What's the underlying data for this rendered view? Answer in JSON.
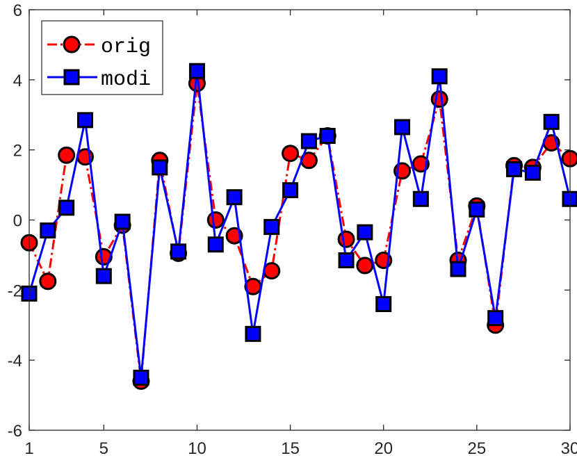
{
  "chart_data": {
    "type": "line",
    "title": "",
    "xlabel": "",
    "ylabel": "",
    "xlim": [
      1,
      30
    ],
    "ylim": [
      -6,
      6
    ],
    "xticks": [
      "1",
      "5",
      "10",
      "15",
      "20",
      "25",
      "30"
    ],
    "yticks": [
      "-6",
      "-4",
      "-2",
      "0",
      "2",
      "4",
      "6"
    ],
    "grid": false,
    "legend_position": "top-left",
    "x": [
      1,
      2,
      3,
      4,
      5,
      6,
      7,
      8,
      9,
      10,
      11,
      12,
      13,
      14,
      15,
      16,
      17,
      18,
      19,
      20,
      21,
      22,
      23,
      24,
      25,
      26,
      27,
      28,
      29,
      30
    ],
    "series": [
      {
        "name": "orig",
        "color": "#ff0000",
        "line_style": "dash-dot",
        "marker": "circle",
        "values": [
          -0.65,
          -1.75,
          1.85,
          1.8,
          -1.05,
          -0.15,
          -4.6,
          1.7,
          -0.95,
          3.9,
          0.0,
          -0.45,
          -1.9,
          -1.45,
          1.9,
          1.7,
          2.4,
          -0.55,
          -1.3,
          -1.15,
          1.4,
          1.6,
          3.45,
          -1.15,
          0.4,
          -3.0,
          1.55,
          1.5,
          2.2,
          1.75
        ]
      },
      {
        "name": "modi",
        "color": "#0000ff",
        "line_style": "solid",
        "marker": "square",
        "values": [
          -2.1,
          -0.3,
          0.35,
          2.85,
          -1.6,
          -0.05,
          -4.5,
          1.5,
          -0.9,
          4.25,
          -0.7,
          0.65,
          -3.25,
          -0.2,
          0.85,
          2.25,
          2.4,
          -1.15,
          -0.35,
          -2.4,
          2.65,
          0.6,
          4.1,
          -1.4,
          0.3,
          -2.8,
          1.45,
          1.35,
          2.8,
          0.6
        ]
      }
    ]
  }
}
